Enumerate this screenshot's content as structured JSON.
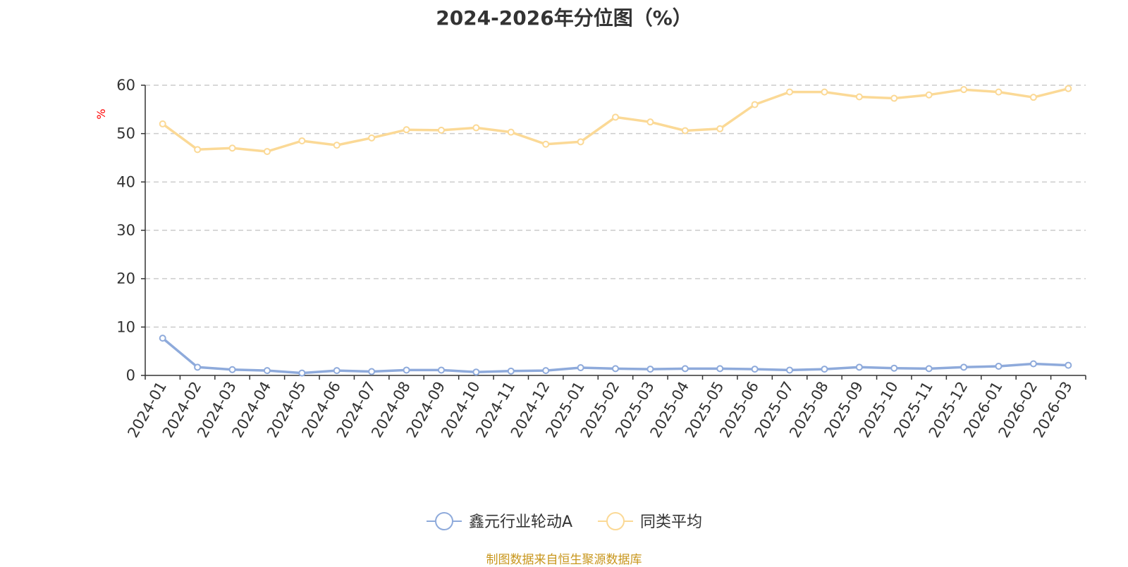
{
  "chart_data": {
    "type": "line",
    "title": "2024-2026年分位图（%）",
    "ylabel": "%",
    "ylim": [
      0,
      60
    ],
    "yticks": [
      0,
      10,
      20,
      30,
      40,
      50,
      60
    ],
    "grid": true,
    "legend_position": "bottom",
    "categories": [
      "2024-01",
      "2024-02",
      "2024-03",
      "2024-04",
      "2024-05",
      "2024-06",
      "2024-07",
      "2024-08",
      "2024-09",
      "2024-10",
      "2024-11",
      "2024-12",
      "2025-01",
      "2025-02",
      "2025-03",
      "2025-04",
      "2025-05",
      "2025-06",
      "2025-07",
      "2025-08",
      "2025-09",
      "2025-10",
      "2025-11",
      "2025-12",
      "2026-01",
      "2026-02",
      "2026-03"
    ],
    "series": [
      {
        "name": "鑫元行业轮动A",
        "color": "#8eaadb",
        "values": [
          7.7,
          1.7,
          1.2,
          1.0,
          0.5,
          1.0,
          0.8,
          1.1,
          1.1,
          0.7,
          0.9,
          1.0,
          1.6,
          1.4,
          1.3,
          1.4,
          1.4,
          1.3,
          1.1,
          1.3,
          1.7,
          1.5,
          1.4,
          1.7,
          1.9,
          2.4,
          2.1
        ]
      },
      {
        "name": "同类平均",
        "color": "#fbd996",
        "values": [
          52.0,
          46.7,
          47.0,
          46.3,
          48.5,
          47.6,
          49.1,
          50.8,
          50.7,
          51.2,
          50.3,
          47.8,
          48.3,
          53.4,
          52.4,
          50.6,
          51.0,
          56.0,
          58.6,
          58.6,
          57.6,
          57.3,
          58.0,
          59.1,
          58.6,
          57.5,
          59.3
        ]
      }
    ]
  },
  "footer": "制图数据来自恒生聚源数据库"
}
